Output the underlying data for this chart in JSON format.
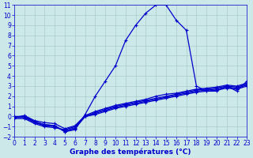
{
  "series": [
    [
      0.0,
      0.0,
      -0.5,
      -0.8,
      -0.9,
      -1.5,
      -1.3,
      0.2,
      2.0,
      3.5,
      5.0,
      7.5,
      9.0,
      10.2,
      11.0,
      11.0,
      9.5,
      8.5,
      3.0,
      2.5,
      2.5,
      3.0,
      2.5,
      3.5
    ],
    [
      0.0,
      0.0,
      -0.5,
      -0.8,
      -0.9,
      -1.5,
      -1.2,
      0.0,
      0.2,
      0.5,
      0.8,
      1.0,
      1.2,
      1.4,
      1.6,
      1.8,
      2.0,
      2.2,
      2.4,
      2.5,
      2.6,
      2.8,
      2.7,
      3.0
    ],
    [
      -0.1,
      -0.1,
      -0.6,
      -0.9,
      -1.0,
      -1.4,
      -1.1,
      0.0,
      0.3,
      0.6,
      0.9,
      1.1,
      1.3,
      1.5,
      1.7,
      1.9,
      2.1,
      2.3,
      2.5,
      2.6,
      2.7,
      2.9,
      2.8,
      3.1
    ],
    [
      -0.2,
      -0.2,
      -0.7,
      -1.0,
      -1.1,
      -1.3,
      -1.0,
      0.0,
      0.4,
      0.7,
      1.0,
      1.2,
      1.4,
      1.6,
      1.8,
      2.0,
      2.2,
      2.4,
      2.6,
      2.7,
      2.8,
      3.0,
      2.9,
      3.2
    ],
    [
      -0.1,
      0.1,
      -0.4,
      -0.6,
      -0.7,
      -1.2,
      -0.9,
      0.1,
      0.5,
      0.8,
      1.1,
      1.3,
      1.5,
      1.7,
      2.0,
      2.2,
      2.3,
      2.5,
      2.7,
      2.8,
      2.9,
      3.1,
      3.0,
      3.3
    ]
  ],
  "x": [
    0,
    1,
    2,
    3,
    4,
    5,
    6,
    7,
    8,
    9,
    10,
    11,
    12,
    13,
    14,
    15,
    16,
    17,
    18,
    19,
    20,
    21,
    22,
    23
  ],
  "xlabel": "Graphe des températures (°C)",
  "xlim": [
    0,
    23
  ],
  "ylim": [
    -2,
    11
  ],
  "yticks": [
    -2,
    -1,
    0,
    1,
    2,
    3,
    4,
    5,
    6,
    7,
    8,
    9,
    10,
    11
  ],
  "xticks": [
    0,
    1,
    2,
    3,
    4,
    5,
    6,
    7,
    8,
    9,
    10,
    11,
    12,
    13,
    14,
    15,
    16,
    17,
    18,
    19,
    20,
    21,
    22,
    23
  ],
  "line_color": "#0000cc",
  "marker": "+",
  "bg_color": "#cce8e8",
  "grid_color": "#aacccc",
  "xlabel_fontsize": 6.5,
  "tick_fontsize": 5.5
}
